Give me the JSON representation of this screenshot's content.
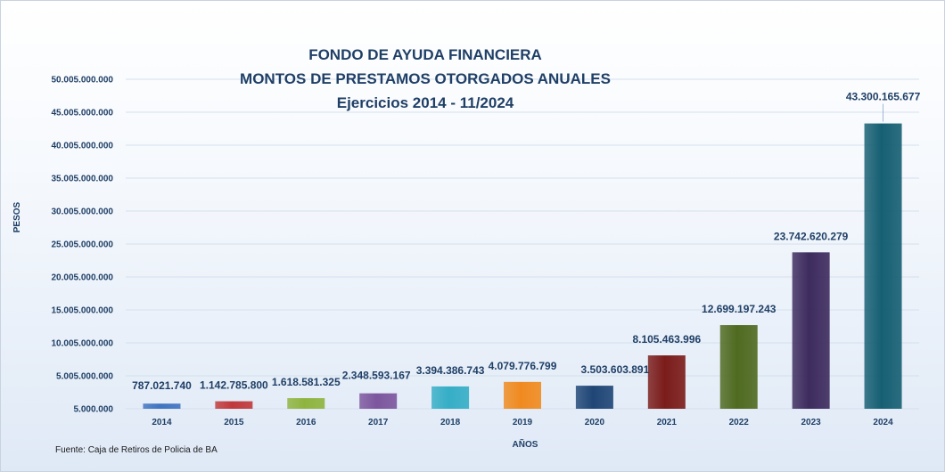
{
  "chart_data": {
    "type": "bar",
    "title": [
      "FONDO DE AYUDA FINANCIERA",
      "MONTOS DE PRESTAMOS OTORGADOS ANUALES",
      "Ejercicios 2014 - 11/2024"
    ],
    "xlabel": "AÑOS",
    "ylabel": "PESOS",
    "categories": [
      "2014",
      "2015",
      "2016",
      "2017",
      "2018",
      "2019",
      "2020",
      "2021",
      "2022",
      "2023",
      "2024"
    ],
    "values": [
      787021740,
      1142785800,
      1618581325,
      2348593167,
      3394386743,
      4079776799,
      3503603891,
      8105463996,
      12699197243,
      23742620279,
      43300165677
    ],
    "value_labels": [
      "787.021.740",
      "1.142.785.800",
      "1.618.581.325",
      "2.348.593.167",
      "3.394.386.743",
      "4.079.776.799",
      "3.503.603.891",
      "8.105.463.996",
      "12.699.197.243",
      "23.742.620.279",
      "43.300.165.677"
    ],
    "ylim": [
      5000000,
      50005000000
    ],
    "yticks": [
      5000000,
      5005000000,
      10005000000,
      15005000000,
      20005000000,
      25005000000,
      30005000000,
      35005000000,
      40005000000,
      45005000000,
      50005000000
    ],
    "ytick_labels": [
      "5.000.000",
      "5.005.000.000",
      "10.005.000.000",
      "15.005.000.000",
      "20.005.000.000",
      "25.005.000.000",
      "30.005.000.000",
      "35.005.000.000",
      "40.005.000.000",
      "45.005.000.000",
      "50.005.000.000"
    ],
    "grid": true,
    "legend": "none",
    "bar_colors": [
      "#3f74c0",
      "#c0393b",
      "#8fb43e",
      "#7c569e",
      "#35aec6",
      "#f08a1f",
      "#1f4676",
      "#7b1c1a",
      "#4f6a20",
      "#3d2b5e",
      "#165f73"
    ]
  },
  "source_note": "Fuente: Caja de Retiros de Policia de BA",
  "colors": {
    "text": "#1f3f66",
    "grid": "#d4e0ee"
  }
}
